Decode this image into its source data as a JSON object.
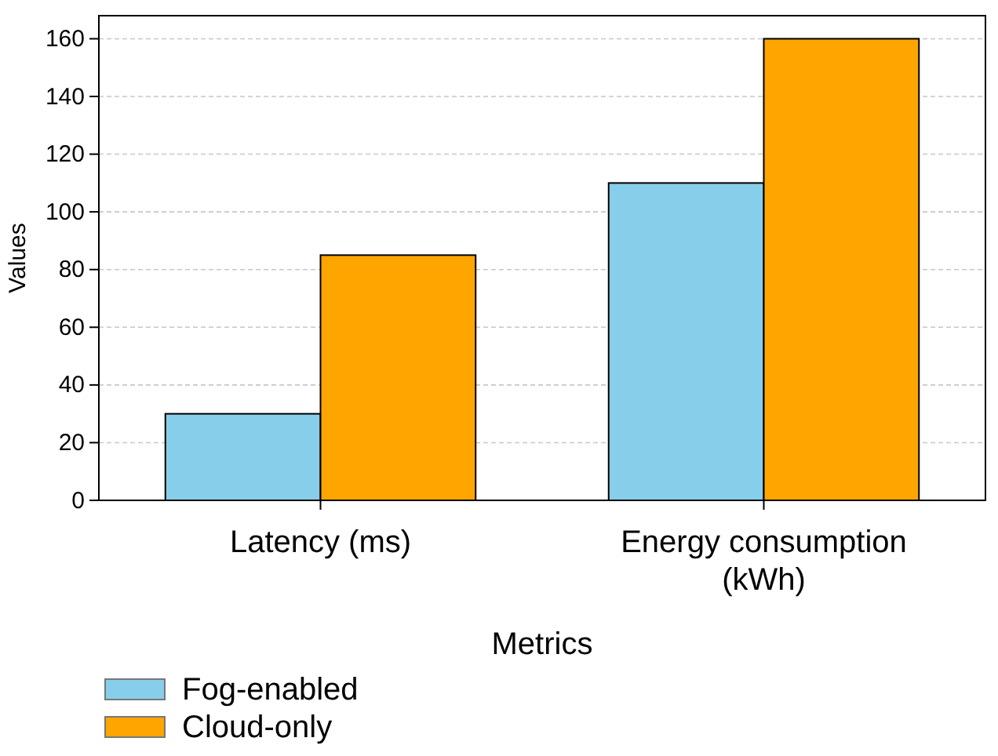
{
  "chart_data": {
    "type": "bar",
    "xlabel": "Metrics",
    "ylabel": "Values",
    "categories": [
      "Latency (ms)",
      "Energy consumption (kWh)"
    ],
    "series": [
      {
        "name": "Fog-enabled",
        "color": "#87ceeb",
        "values": [
          30,
          110
        ]
      },
      {
        "name": "Cloud-only",
        "color": "#ffa500",
        "values": [
          85,
          160
        ]
      }
    ],
    "ylim": [
      0,
      168
    ],
    "yticks": [
      0,
      20,
      40,
      60,
      80,
      100,
      120,
      140,
      160
    ],
    "grid": "y",
    "legend": "bottom left"
  }
}
